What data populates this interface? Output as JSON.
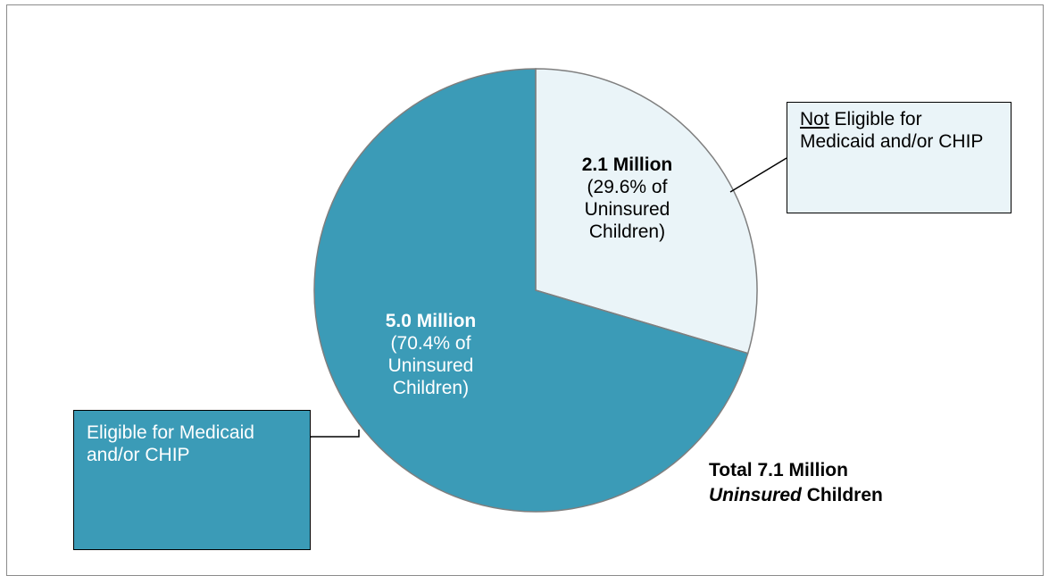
{
  "chart_data": {
    "type": "pie",
    "title": "",
    "total_label_line1": "Total 7.1 Million",
    "total_label_line2_italic": "Uninsured",
    "total_label_line2_rest": "Children",
    "slices": [
      {
        "name": "Not Eligible for Medicaid and/or CHIP",
        "value_millions": 2.1,
        "percent": 29.6,
        "value_label": "2.1 Million",
        "percent_label_lines": [
          "(29.6% of",
          "Uninsured",
          "Children)"
        ],
        "legend_underlined": "Not",
        "legend_rest": " Eligible for Medicaid and/or CHIP",
        "color": "#eaf4f8"
      },
      {
        "name": "Eligible for Medicaid and/or CHIP",
        "value_millions": 5.0,
        "percent": 70.4,
        "value_label": "5.0 Million",
        "percent_label_lines": [
          "(70.4% of",
          "Uninsured",
          "Children)"
        ],
        "legend_text": "Eligible for Medicaid and/or CHIP",
        "color": "#3b9bb7"
      }
    ],
    "start_angle": "12 o'clock",
    "direction": "clockwise",
    "outline_color": "#7f7f7f"
  }
}
